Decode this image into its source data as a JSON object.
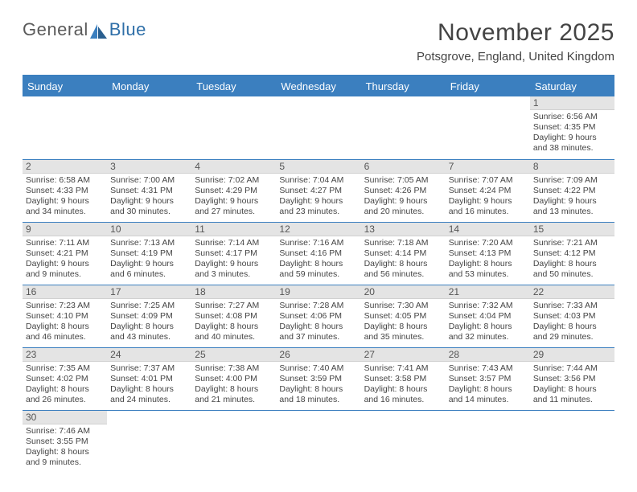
{
  "logo": {
    "text1": "General",
    "text2": "Blue"
  },
  "title": "November 2025",
  "location": "Potsgrove, England, United Kingdom",
  "colors": {
    "header_bg": "#3b7fbf",
    "header_text": "#ffffff",
    "daynum_bg": "#e4e4e4",
    "divider": "#3b7fbf",
    "body_text": "#444444",
    "logo_accent": "#2f6fa8"
  },
  "fonts": {
    "title_pt": 30,
    "location_pt": 15,
    "dayhead_pt": 13,
    "cell_pt": 10.5
  },
  "weekdays": [
    "Sunday",
    "Monday",
    "Tuesday",
    "Wednesday",
    "Thursday",
    "Friday",
    "Saturday"
  ],
  "weeks": [
    [
      null,
      null,
      null,
      null,
      null,
      null,
      {
        "n": "1",
        "sunrise": "Sunrise: 6:56 AM",
        "sunset": "Sunset: 4:35 PM",
        "daylight": "Daylight: 9 hours and 38 minutes."
      }
    ],
    [
      {
        "n": "2",
        "sunrise": "Sunrise: 6:58 AM",
        "sunset": "Sunset: 4:33 PM",
        "daylight": "Daylight: 9 hours and 34 minutes."
      },
      {
        "n": "3",
        "sunrise": "Sunrise: 7:00 AM",
        "sunset": "Sunset: 4:31 PM",
        "daylight": "Daylight: 9 hours and 30 minutes."
      },
      {
        "n": "4",
        "sunrise": "Sunrise: 7:02 AM",
        "sunset": "Sunset: 4:29 PM",
        "daylight": "Daylight: 9 hours and 27 minutes."
      },
      {
        "n": "5",
        "sunrise": "Sunrise: 7:04 AM",
        "sunset": "Sunset: 4:27 PM",
        "daylight": "Daylight: 9 hours and 23 minutes."
      },
      {
        "n": "6",
        "sunrise": "Sunrise: 7:05 AM",
        "sunset": "Sunset: 4:26 PM",
        "daylight": "Daylight: 9 hours and 20 minutes."
      },
      {
        "n": "7",
        "sunrise": "Sunrise: 7:07 AM",
        "sunset": "Sunset: 4:24 PM",
        "daylight": "Daylight: 9 hours and 16 minutes."
      },
      {
        "n": "8",
        "sunrise": "Sunrise: 7:09 AM",
        "sunset": "Sunset: 4:22 PM",
        "daylight": "Daylight: 9 hours and 13 minutes."
      }
    ],
    [
      {
        "n": "9",
        "sunrise": "Sunrise: 7:11 AM",
        "sunset": "Sunset: 4:21 PM",
        "daylight": "Daylight: 9 hours and 9 minutes."
      },
      {
        "n": "10",
        "sunrise": "Sunrise: 7:13 AM",
        "sunset": "Sunset: 4:19 PM",
        "daylight": "Daylight: 9 hours and 6 minutes."
      },
      {
        "n": "11",
        "sunrise": "Sunrise: 7:14 AM",
        "sunset": "Sunset: 4:17 PM",
        "daylight": "Daylight: 9 hours and 3 minutes."
      },
      {
        "n": "12",
        "sunrise": "Sunrise: 7:16 AM",
        "sunset": "Sunset: 4:16 PM",
        "daylight": "Daylight: 8 hours and 59 minutes."
      },
      {
        "n": "13",
        "sunrise": "Sunrise: 7:18 AM",
        "sunset": "Sunset: 4:14 PM",
        "daylight": "Daylight: 8 hours and 56 minutes."
      },
      {
        "n": "14",
        "sunrise": "Sunrise: 7:20 AM",
        "sunset": "Sunset: 4:13 PM",
        "daylight": "Daylight: 8 hours and 53 minutes."
      },
      {
        "n": "15",
        "sunrise": "Sunrise: 7:21 AM",
        "sunset": "Sunset: 4:12 PM",
        "daylight": "Daylight: 8 hours and 50 minutes."
      }
    ],
    [
      {
        "n": "16",
        "sunrise": "Sunrise: 7:23 AM",
        "sunset": "Sunset: 4:10 PM",
        "daylight": "Daylight: 8 hours and 46 minutes."
      },
      {
        "n": "17",
        "sunrise": "Sunrise: 7:25 AM",
        "sunset": "Sunset: 4:09 PM",
        "daylight": "Daylight: 8 hours and 43 minutes."
      },
      {
        "n": "18",
        "sunrise": "Sunrise: 7:27 AM",
        "sunset": "Sunset: 4:08 PM",
        "daylight": "Daylight: 8 hours and 40 minutes."
      },
      {
        "n": "19",
        "sunrise": "Sunrise: 7:28 AM",
        "sunset": "Sunset: 4:06 PM",
        "daylight": "Daylight: 8 hours and 37 minutes."
      },
      {
        "n": "20",
        "sunrise": "Sunrise: 7:30 AM",
        "sunset": "Sunset: 4:05 PM",
        "daylight": "Daylight: 8 hours and 35 minutes."
      },
      {
        "n": "21",
        "sunrise": "Sunrise: 7:32 AM",
        "sunset": "Sunset: 4:04 PM",
        "daylight": "Daylight: 8 hours and 32 minutes."
      },
      {
        "n": "22",
        "sunrise": "Sunrise: 7:33 AM",
        "sunset": "Sunset: 4:03 PM",
        "daylight": "Daylight: 8 hours and 29 minutes."
      }
    ],
    [
      {
        "n": "23",
        "sunrise": "Sunrise: 7:35 AM",
        "sunset": "Sunset: 4:02 PM",
        "daylight": "Daylight: 8 hours and 26 minutes."
      },
      {
        "n": "24",
        "sunrise": "Sunrise: 7:37 AM",
        "sunset": "Sunset: 4:01 PM",
        "daylight": "Daylight: 8 hours and 24 minutes."
      },
      {
        "n": "25",
        "sunrise": "Sunrise: 7:38 AM",
        "sunset": "Sunset: 4:00 PM",
        "daylight": "Daylight: 8 hours and 21 minutes."
      },
      {
        "n": "26",
        "sunrise": "Sunrise: 7:40 AM",
        "sunset": "Sunset: 3:59 PM",
        "daylight": "Daylight: 8 hours and 18 minutes."
      },
      {
        "n": "27",
        "sunrise": "Sunrise: 7:41 AM",
        "sunset": "Sunset: 3:58 PM",
        "daylight": "Daylight: 8 hours and 16 minutes."
      },
      {
        "n": "28",
        "sunrise": "Sunrise: 7:43 AM",
        "sunset": "Sunset: 3:57 PM",
        "daylight": "Daylight: 8 hours and 14 minutes."
      },
      {
        "n": "29",
        "sunrise": "Sunrise: 7:44 AM",
        "sunset": "Sunset: 3:56 PM",
        "daylight": "Daylight: 8 hours and 11 minutes."
      }
    ],
    [
      {
        "n": "30",
        "sunrise": "Sunrise: 7:46 AM",
        "sunset": "Sunset: 3:55 PM",
        "daylight": "Daylight: 8 hours and 9 minutes."
      },
      null,
      null,
      null,
      null,
      null,
      null
    ]
  ]
}
